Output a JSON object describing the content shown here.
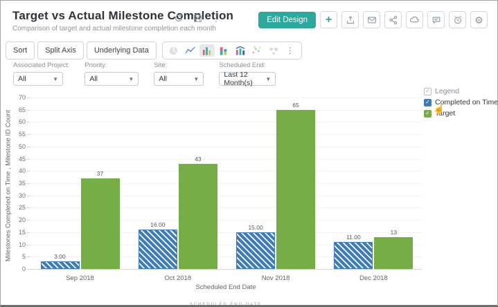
{
  "header": {
    "title": "Target vs Actual Milestone Completion",
    "subtitle": "Comparison of target and actual milestone completion each month",
    "actions": {
      "edit_design_label": "Edit Design",
      "add_label": "+",
      "icon_buttons": [
        "export-icon",
        "email-icon",
        "share-icon",
        "publish-icon",
        "comment-icon",
        "schedule-icon",
        "settings-icon"
      ]
    }
  },
  "toolbar": {
    "buttons": [
      "Sort",
      "Split Axis",
      "Underlying Data"
    ],
    "chart_type_icons": [
      {
        "name": "pie-chart-icon",
        "state": "disabled"
      },
      {
        "name": "line-chart-icon",
        "state": "normal"
      },
      {
        "name": "bar-chart-icon",
        "state": "selected"
      },
      {
        "name": "stacked-bar-chart-icon",
        "state": "normal"
      },
      {
        "name": "combo-chart-icon",
        "state": "normal"
      },
      {
        "name": "scatter-chart-icon",
        "state": "disabled"
      },
      {
        "name": "map-chart-icon",
        "state": "disabled"
      },
      {
        "name": "more-chart-types-icon",
        "state": "normal"
      }
    ]
  },
  "filters": [
    {
      "label": "Associated Project:",
      "value": "All"
    },
    {
      "label": "Priority:",
      "value": "All"
    },
    {
      "label": "Site:",
      "value": "All"
    },
    {
      "label": "Scheduled End:",
      "value": "Last 12 Month(s)"
    }
  ],
  "chart_data": {
    "type": "bar",
    "title": "Target vs Actual Milestone Completion",
    "categories": [
      "Sep 2018",
      "Oct 2018",
      "Nov 2018",
      "Dec 2018"
    ],
    "series": [
      {
        "name": "Completed on Time",
        "color": "#3d7bbf",
        "pattern": "diagonal-stripes",
        "values": [
          3,
          16,
          15,
          11
        ],
        "labels": [
          "3.00",
          "16.00",
          "15.00",
          "11.00"
        ]
      },
      {
        "name": "Target",
        "color": "#74ae45",
        "pattern": "solid",
        "values": [
          37,
          43,
          65,
          13
        ],
        "labels": [
          "37",
          "43",
          "65",
          "13"
        ]
      }
    ],
    "xlabel": "Scheduled End Date",
    "ylabel": "Milestones Completed on Time , Milestone ID Count",
    "ylim": [
      0,
      70
    ],
    "ytick_step": 5,
    "grid": true,
    "legend_position": "right"
  },
  "legend": {
    "title": "Legend",
    "items": [
      {
        "label": "Completed on Time",
        "color": "#3d7bbf",
        "checked": true
      },
      {
        "label": "Target",
        "color": "#74ae45",
        "checked": true
      }
    ],
    "check_glyph": "✓"
  },
  "footer": {
    "clipped_text": "SCHEDULED END DATE"
  },
  "colors": {
    "accent": "#2aa99c",
    "bar_blue": "#3d7bbf",
    "bar_green": "#74ae45"
  }
}
